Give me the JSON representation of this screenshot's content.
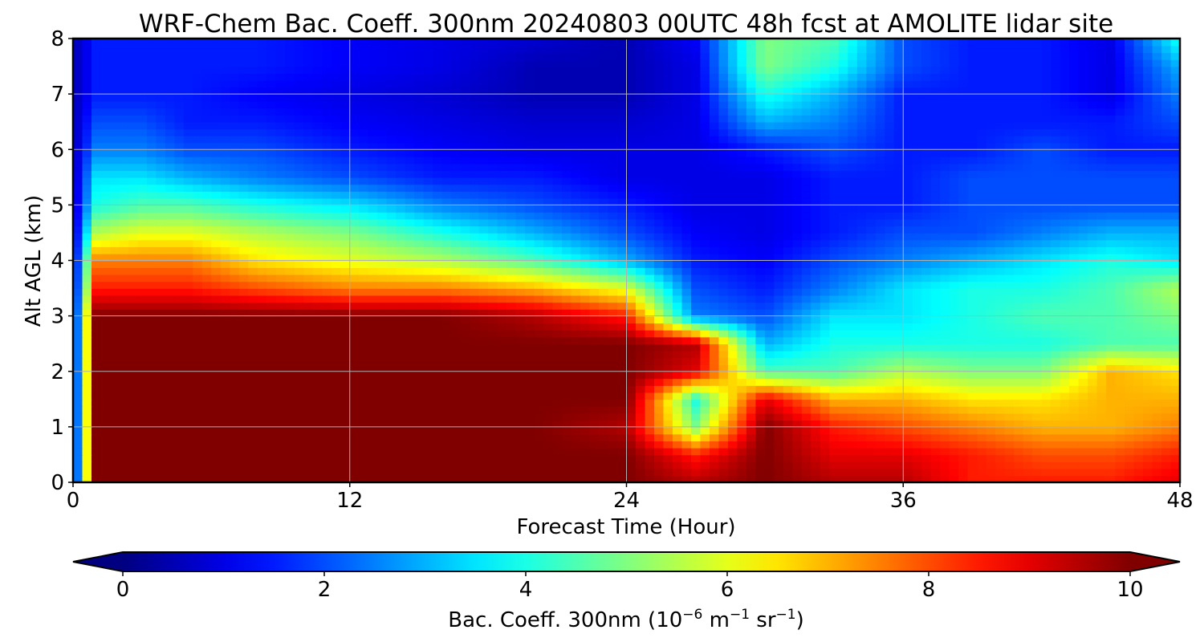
{
  "chart_data": {
    "type": "heatmap",
    "title": "WRF-Chem Bac. Coeff. 300nm  20240803 00UTC 48h fcst at AMOLITE lidar site",
    "xlabel": "Forecast Time (Hour)",
    "ylabel": "Alt AGL (km)",
    "x_ticks": [
      "0",
      "12",
      "24",
      "36",
      "48"
    ],
    "y_ticks": [
      "0",
      "1",
      "2",
      "3",
      "4",
      "5",
      "6",
      "7",
      "8"
    ],
    "xlim": [
      0,
      48
    ],
    "ylim": [
      0,
      8
    ],
    "grid": true,
    "colormap": "jet",
    "colorbar": {
      "orientation": "horizontal",
      "placement": "bottom",
      "extend": "both",
      "range": [
        0,
        10
      ],
      "ticks": [
        "0",
        "2",
        "4",
        "6",
        "8",
        "10"
      ],
      "label_prefix": "Bac. Coeff. 300nm  (10",
      "label_exp1": "−6",
      "label_mid1": " m",
      "label_exp2": "−1",
      "label_mid2": " sr",
      "label_exp3": "−1",
      "label_suffix": ")"
    },
    "field": {
      "x": [
        0,
        1,
        3,
        5,
        8,
        12,
        16,
        20,
        24,
        27,
        30,
        33,
        36,
        39,
        42,
        45,
        48
      ],
      "y": [
        0,
        0.5,
        1,
        1.5,
        2,
        2.5,
        3,
        3.5,
        4,
        4.5,
        5,
        5.5,
        6,
        6.5,
        7,
        7.5,
        8
      ],
      "z": [
        [
          0.5,
          10,
          10,
          10,
          10,
          10,
          10,
          10,
          10,
          9.5,
          10,
          9.5,
          9.5,
          8.5,
          8.5,
          8.5,
          9
        ],
        [
          0.5,
          10,
          10,
          10,
          10,
          10,
          10,
          10,
          10,
          8.5,
          10,
          9,
          9,
          8.5,
          8,
          8,
          8.5
        ],
        [
          0.5,
          10,
          10,
          10,
          10,
          10,
          10,
          10,
          9.5,
          5,
          10,
          8.5,
          8,
          7.5,
          7,
          7,
          7.5
        ],
        [
          0.5,
          10,
          10,
          10,
          10,
          10,
          10,
          10,
          10,
          4,
          9,
          7,
          7,
          6.5,
          6.5,
          7,
          7
        ],
        [
          0.5,
          10,
          10,
          10,
          10,
          10,
          10,
          10,
          10,
          9,
          4.5,
          4.5,
          5.5,
          5,
          5,
          7,
          6.5
        ],
        [
          0.5,
          10,
          10,
          10,
          10,
          10,
          10,
          10,
          10,
          9.5,
          3,
          4,
          4,
          4,
          4,
          4.5,
          4.5
        ],
        [
          0.5,
          10,
          10,
          10,
          10,
          10,
          10,
          9.5,
          8.5,
          2.5,
          2,
          3.5,
          3.5,
          4,
          4.5,
          4.5,
          5
        ],
        [
          0.5,
          8.5,
          8.5,
          8.5,
          8,
          7.5,
          7.5,
          7,
          6,
          2,
          1.5,
          2.5,
          3.5,
          4,
          4,
          4.5,
          5.5
        ],
        [
          0.5,
          7.5,
          7.5,
          7.5,
          6.5,
          6,
          5.5,
          4.5,
          3,
          1.5,
          1.2,
          2,
          2.5,
          3,
          3.5,
          4,
          3.5
        ],
        [
          0.5,
          5.5,
          6,
          6,
          5.5,
          5,
          4,
          3,
          2,
          1.2,
          1,
          1.5,
          2,
          2,
          2.5,
          3,
          3
        ],
        [
          0.5,
          4,
          4.5,
          4.5,
          4,
          3.5,
          2.5,
          2,
          1.5,
          1,
          1,
          1.5,
          1.5,
          2,
          2,
          2,
          2
        ],
        [
          0.5,
          3.5,
          3.5,
          3,
          2.5,
          2,
          1.5,
          1.5,
          1,
          1,
          1,
          1.5,
          1.5,
          2,
          2,
          2,
          2
        ],
        [
          0.5,
          2.5,
          2.5,
          2,
          2,
          1.5,
          1.2,
          1,
          1,
          1,
          1.5,
          2,
          1.5,
          1.5,
          2,
          1.5,
          1.5
        ],
        [
          0.5,
          2,
          2,
          1.5,
          1.5,
          1.2,
          1,
          0.8,
          0.8,
          1,
          3,
          2.5,
          1.5,
          1.5,
          1.5,
          1.5,
          2
        ],
        [
          0.5,
          1.5,
          1.5,
          1.5,
          1.2,
          1,
          0.8,
          0.5,
          0.5,
          1,
          4,
          3,
          1.5,
          1.5,
          1.5,
          1,
          2.5
        ],
        [
          0.5,
          1.5,
          1.5,
          1.5,
          1.5,
          1.2,
          1,
          0.5,
          0.5,
          1,
          5,
          4,
          2,
          1.5,
          1.5,
          1,
          3
        ],
        [
          0.5,
          1.5,
          1.5,
          1.5,
          1.5,
          1.2,
          1,
          0.8,
          0.5,
          1.2,
          5,
          4.5,
          2,
          1.5,
          1.5,
          1,
          4
        ]
      ]
    }
  }
}
